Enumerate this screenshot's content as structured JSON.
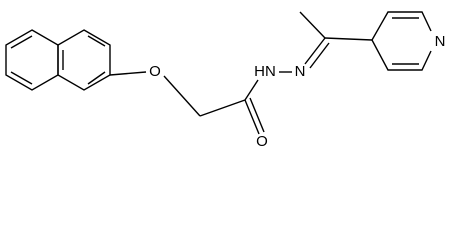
{
  "atoms": {
    "ether_o": "O",
    "amide_nh": "HN",
    "imine_n": "N",
    "carbonyl_o": "O",
    "pyridine_n": "N"
  }
}
